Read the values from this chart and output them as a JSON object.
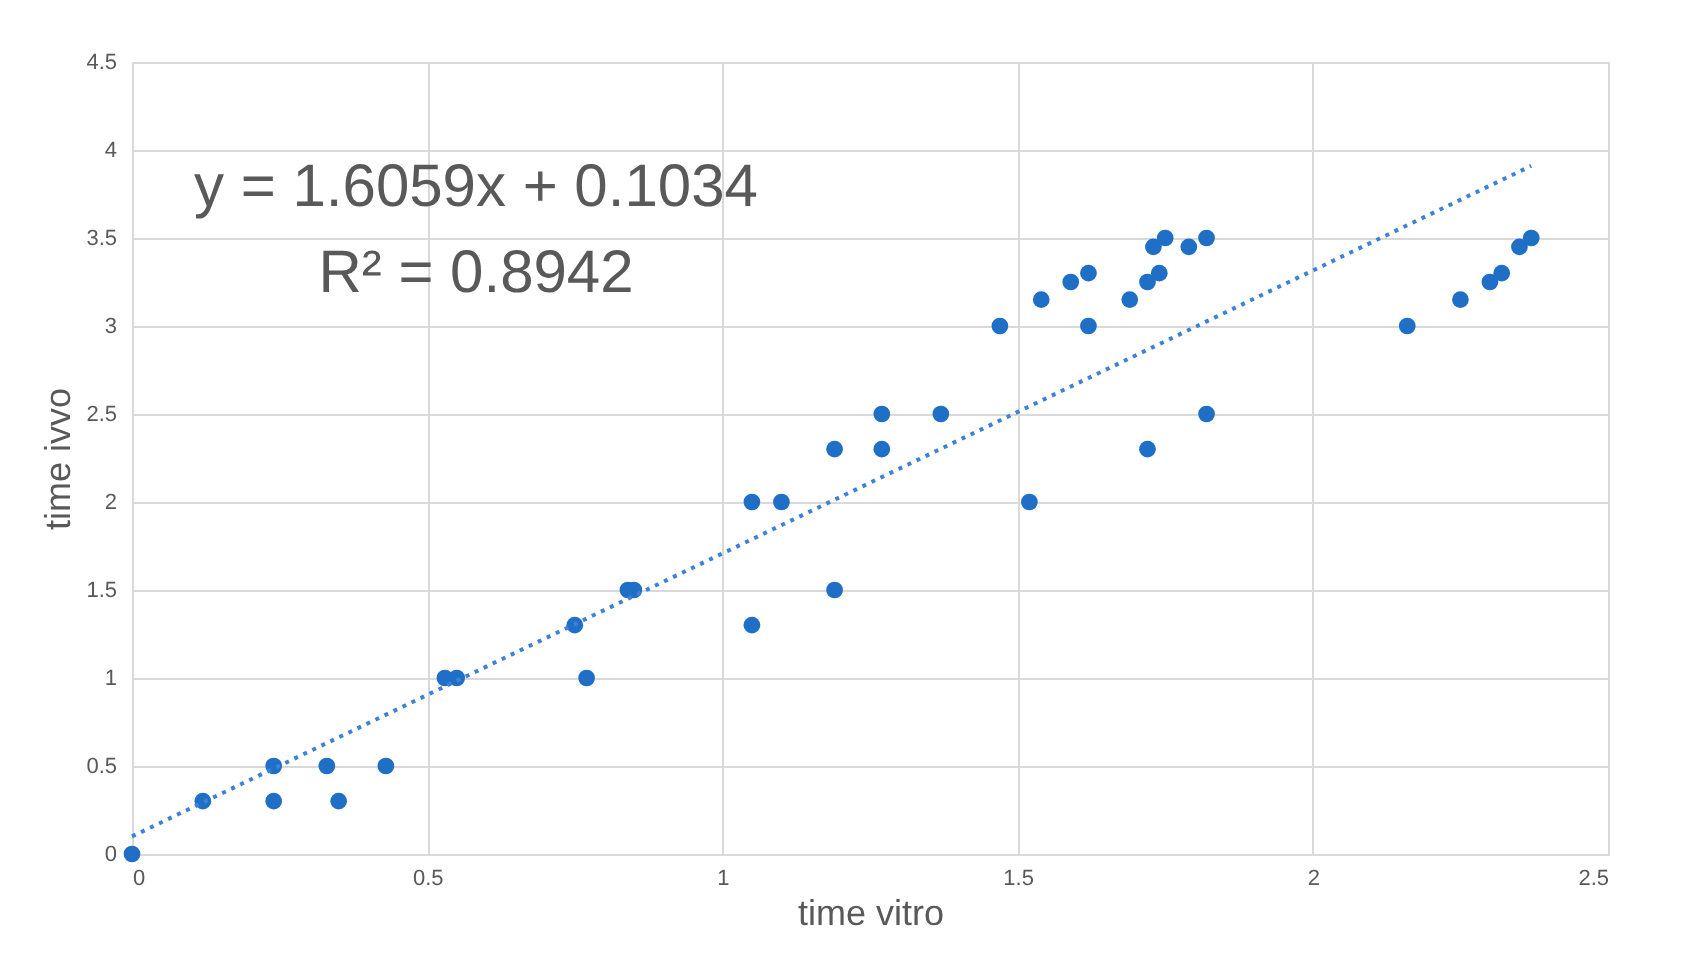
{
  "chart_data": {
    "type": "scatter",
    "xlabel": "time vitro",
    "ylabel": "time ivvo",
    "annotations": [
      "y = 1.6059x + 0.1034",
      "R² = 0.8942"
    ],
    "xlim": [
      0,
      2.5
    ],
    "xticks": [
      0,
      0.5,
      1,
      1.5,
      2,
      2.5
    ],
    "ylim": [
      0,
      4.5
    ],
    "yticks": [
      0,
      0.5,
      1,
      1.5,
      2,
      2.5,
      3,
      3.5,
      4,
      4.5
    ],
    "grid": true,
    "series": [
      {
        "marker": "circle",
        "color": "#1f6fc6",
        "x": [
          0,
          0.12,
          0.24,
          0.24,
          0.33,
          0.35,
          0.43,
          0.53,
          0.55,
          0.77,
          0.75,
          0.84,
          0.85,
          1.05,
          1.1,
          1.05,
          1.19,
          1.19,
          1.27,
          1.27,
          1.37,
          1.47,
          1.52,
          1.54,
          1.59,
          1.62,
          1.62,
          1.69,
          1.72,
          1.72,
          1.74,
          1.73,
          1.75,
          1.79,
          1.82,
          1.82,
          2.16,
          2.25,
          2.3,
          2.32,
          2.35,
          2.37
        ],
        "values": [
          0,
          0.3,
          0.5,
          0.3,
          0.5,
          0.3,
          0.5,
          1.0,
          1.0,
          1.0,
          1.3,
          1.5,
          1.5,
          2.0,
          2.0,
          1.3,
          1.5,
          2.3,
          2.3,
          2.5,
          2.5,
          3.0,
          2.0,
          3.15,
          3.25,
          3.3,
          3.0,
          3.15,
          2.3,
          3.25,
          3.3,
          3.45,
          3.5,
          3.45,
          3.5,
          2.5,
          3.0,
          3.15,
          3.25,
          3.3,
          3.45,
          3.5
        ]
      },
      {
        "type": "line",
        "color": "#3c82d8",
        "line_style": "dotted",
        "x": [
          0,
          2.37
        ],
        "values": [
          0.1,
          3.91
        ]
      }
    ]
  }
}
